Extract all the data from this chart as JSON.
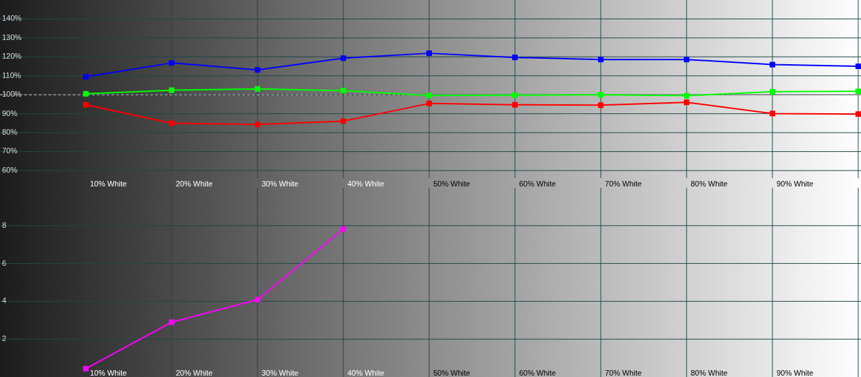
{
  "chart_data": [
    {
      "type": "line",
      "categories": [
        "10% White",
        "20% White",
        "30% White",
        "40% White",
        "50% White",
        "60% White",
        "70% White",
        "80% White",
        "90% White",
        null
      ],
      "series": [
        {
          "color": "#0000ff",
          "values": [
            109.5,
            116.8,
            113.1,
            119.3,
            121.9,
            119.7,
            118.6,
            118.6,
            115.9,
            115
          ]
        },
        {
          "color": "#00ff00",
          "values": [
            100.5,
            102.4,
            103.1,
            102.2,
            99.6,
            99.8,
            100,
            99.5,
            101.6,
            101.8
          ]
        },
        {
          "color": "#ff0000",
          "values": [
            94.7,
            85,
            84.3,
            86.1,
            95.4,
            94.7,
            94.5,
            96,
            90.1,
            89.8
          ]
        }
      ],
      "ylim": [
        56,
        150
      ],
      "yticks": [
        {
          "value": 60,
          "label": "60%"
        },
        {
          "value": 70,
          "label": "70%"
        },
        {
          "value": 80,
          "label": "80%"
        },
        {
          "value": 90,
          "label": "90%"
        },
        {
          "value": 100,
          "label": "100%"
        },
        {
          "value": 110,
          "label": "110%"
        },
        {
          "value": 120,
          "label": "120%"
        },
        {
          "value": 130,
          "label": "130%"
        },
        {
          "value": 140,
          "label": "140%"
        }
      ],
      "ref_lines": [
        {
          "axis": "y",
          "value": 100,
          "color": "#ffffff",
          "line_style": "dashed"
        }
      ],
      "grid": true,
      "marker": "square",
      "line_style": "solid"
    },
    {
      "type": "line",
      "categories": [
        "10% White",
        "20% White",
        "30% White",
        "40% White",
        "50% White",
        "60% White",
        "70% White",
        "80% White",
        "90% White",
        null
      ],
      "series": [
        {
          "color": "#ff00ff",
          "values": [
            0.44,
            2.9,
            4.09,
            7.82,
            null,
            null,
            null,
            null,
            null,
            null
          ]
        }
      ],
      "ylim": [
        0,
        10
      ],
      "yticks": [
        2,
        4,
        6,
        8
      ],
      "grid": true,
      "marker": "square",
      "line_style": "solid"
    }
  ]
}
